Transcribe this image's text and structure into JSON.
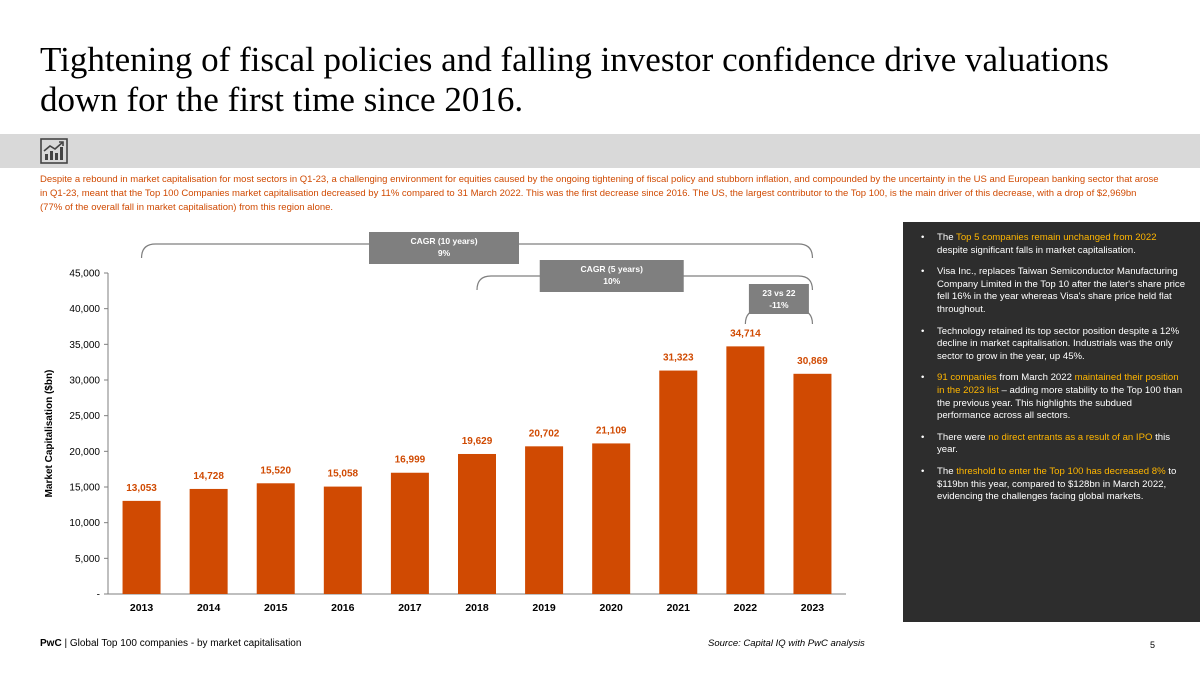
{
  "title": "Tightening of fiscal policies and falling investor confidence drive valuations down for the first time since 2016.",
  "icon": "chart-trend-icon",
  "intro_text": "Despite a rebound in market capitalisation for most sectors in Q1-23, a challenging environment for equities caused by the ongoing tightening of fiscal policy and stubborn inflation, and compounded by the uncertainty in the US and European banking sector that arose in Q1-23, meant that the Top 100 Companies market capitalisation decreased by 11% compared to 31 March 2022. This was the first decrease since 2016. The US, the largest contributor to the Top 100, is the main driver of this decrease, with a drop of $2,969bn (77% of the overall fall in market capitalisation) from this region alone.",
  "colors": {
    "bar": "#d04a02",
    "accent": "#d04a02",
    "highlight": "#ffb600",
    "panel_bg": "#2d2d2d",
    "cagr_box": "#7f7f7f"
  },
  "chart_data": {
    "type": "bar",
    "categories": [
      "2013",
      "2014",
      "2015",
      "2016",
      "2017",
      "2018",
      "2019",
      "2020",
      "2021",
      "2022",
      "2023"
    ],
    "values": [
      13053,
      14728,
      15520,
      15058,
      16999,
      19629,
      20702,
      21109,
      31323,
      34714,
      30869
    ],
    "value_labels": [
      "13,053",
      "14,728",
      "15,520",
      "15,058",
      "16,999",
      "19,629",
      "20,702",
      "21,109",
      "31,323",
      "34,714",
      "30,869"
    ],
    "ylabel": "Market Capitalisation ($bn)",
    "ylim": [
      0,
      45000
    ],
    "yticks": [
      0,
      5000,
      10000,
      15000,
      20000,
      25000,
      30000,
      35000,
      40000,
      45000
    ],
    "ytick_labels": [
      "-",
      "5,000",
      "10,000",
      "15,000",
      "20,000",
      "25,000",
      "30,000",
      "35,000",
      "40,000",
      "45,000"
    ],
    "annotations": [
      {
        "label": "CAGR (10 years)",
        "value": "9%",
        "from": "2013",
        "to": "2023"
      },
      {
        "label": "CAGR (5 years)",
        "value": "10%",
        "from": "2018",
        "to": "2023"
      },
      {
        "label": "23 vs 22",
        "value": "-11%",
        "from": "2022",
        "to": "2023"
      }
    ]
  },
  "panel": {
    "items": [
      [
        {
          "t": "The ",
          "h": false
        },
        {
          "t": "Top 5 companies remain unchanged from 2022",
          "h": true
        },
        {
          "t": " despite significant falls in market capitalisation.",
          "h": false
        }
      ],
      [
        {
          "t": "Visa Inc., replaces Taiwan Semiconductor Manufacturing Company Limited in the Top 10 after the later's share price fell 16% in the year whereas Visa's share price held flat throughout.",
          "h": false
        }
      ],
      [
        {
          "t": "Technology retained its top sector position despite a 12% decline in market capitalisation. Industrials was the only sector to grow in the year, up 45%.",
          "h": false
        }
      ],
      [
        {
          "t": "91 companies",
          "h": true
        },
        {
          "t": " from March 2022 ",
          "h": false
        },
        {
          "t": "maintained their position in the 2023 list",
          "h": true
        },
        {
          "t": " – adding more stability to the Top 100 than the previous year. This highlights the subdued performance across all sectors.",
          "h": false
        }
      ],
      [
        {
          "t": "There were ",
          "h": false
        },
        {
          "t": "no direct entrants as a result of an IPO",
          "h": true
        },
        {
          "t": " this year.",
          "h": false
        }
      ],
      [
        {
          "t": "The ",
          "h": false
        },
        {
          "t": "threshold to enter the Top 100 has decreased 8%",
          "h": true
        },
        {
          "t": " to $119bn this year, compared to $128bn in March 2022, evidencing the challenges facing global markets.",
          "h": false
        }
      ]
    ]
  },
  "footer": {
    "brand": "PwC",
    "text": " | Global Top 100 companies - by market capitalisation",
    "source": "Source: Capital IQ with PwC analysis",
    "page": "5"
  }
}
